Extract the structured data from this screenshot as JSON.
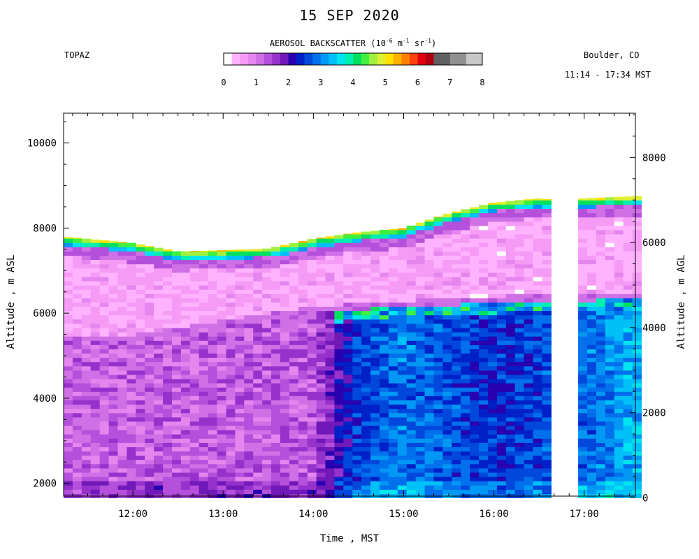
{
  "chart_data": {
    "type": "heatmap",
    "title": "15 SEP 2020",
    "instrument": "TOPAZ",
    "location": "Boulder, CO",
    "time_range": "11:14 - 17:34 MST",
    "colorbar": {
      "title_main": "AEROSOL BACKSCATTER (10",
      "title_exp1": "-6",
      "title_mid1": " m",
      "title_exp2": "-1",
      "title_mid2": " sr",
      "title_exp3": "-1",
      "title_end": ")",
      "range": [
        0,
        8
      ],
      "ticks": [
        "0",
        "1",
        "2",
        "3",
        "4",
        "5",
        "6",
        "7",
        "8"
      ],
      "colors": [
        "#ffffff",
        "#ffb3ff",
        "#f59bf5",
        "#e586ef",
        "#d070e6",
        "#b550dc",
        "#9632cc",
        "#7018b8",
        "#2800b0",
        "#0020c8",
        "#0048dc",
        "#0070ec",
        "#0098f4",
        "#00c0f8",
        "#00e4f0",
        "#00f0b0",
        "#00e060",
        "#40f040",
        "#a0f040",
        "#e0f030",
        "#ffe000",
        "#ffb000",
        "#ff8000",
        "#ff4010",
        "#e00010",
        "#b00010",
        "#606060",
        "#606060",
        "#909090",
        "#909090",
        "#c8c8c8",
        "#c8c8c8"
      ]
    },
    "xlabel": "Time , MST",
    "ylabel_left": "Altitude , m ASL",
    "ylabel_right": "Altitude , m AGL",
    "x_range_hours": [
      11.233,
      17.567
    ],
    "y_range_m": [
      1700,
      10700
    ],
    "x_ticks": [
      "12:00",
      "13:00",
      "14:00",
      "15:00",
      "16:00",
      "17:00"
    ],
    "x_tick_hours": [
      12,
      13,
      14,
      15,
      16,
      17
    ],
    "y_ticks_left": [
      "2000",
      "4000",
      "6000",
      "8000",
      "10000"
    ],
    "y_ticks_left_values": [
      2000,
      4000,
      6000,
      8000,
      10000
    ],
    "y_ticks_right": [
      "0",
      "2000",
      "4000",
      "6000",
      "8000"
    ],
    "y_ticks_right_values": [
      0,
      2000,
      4000,
      6000,
      8000
    ],
    "surface_elevation_m": 1660,
    "grid": false,
    "layers": [
      {
        "name": "free troposphere",
        "x": [
          11.233,
          12.0,
          12.5,
          13.0,
          13.5,
          14.0,
          14.5,
          15.0,
          15.5,
          16.0,
          16.5,
          16.7,
          17.0,
          17.567
        ],
        "top_m": [
          7800,
          7650,
          7450,
          7480,
          7520,
          7750,
          7900,
          8000,
          8350,
          8600,
          8700,
          8650,
          8700,
          8750
        ]
      },
      {
        "name": "smoke layer base",
        "x": [
          11.233,
          12.0,
          12.5,
          13.0,
          13.5,
          14.0,
          14.5,
          15.0,
          15.5,
          16.0,
          16.5,
          17.0,
          17.567
        ],
        "base_m": [
          5300,
          5300,
          5450,
          5650,
          5800,
          5950,
          6050,
          6100,
          6150,
          6200,
          6250,
          6250,
          6300
        ]
      },
      {
        "name": "boundary layer",
        "x": [
          11.233,
          14.0,
          14.5,
          15.0,
          16.0,
          16.5,
          17.0,
          17.567
        ],
        "dominant_value": [
          1.2,
          1.3,
          2.6,
          2.9,
          2.4,
          2.6,
          2.8,
          3.3
        ]
      }
    ],
    "data_gap_hours": [
      16.67,
      16.97
    ]
  }
}
